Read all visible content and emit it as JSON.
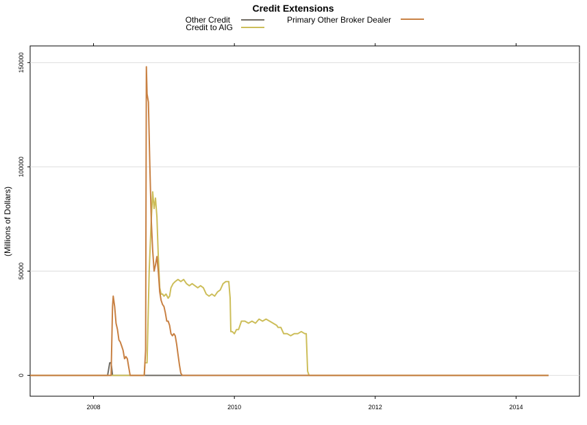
{
  "chart_data": {
    "type": "line",
    "title": "Credit Extensions",
    "ylabel": "(Millions of Dollars)",
    "xlabel": "",
    "xlim": [
      2007.1,
      2014.9
    ],
    "ylim": [
      -10000,
      158000
    ],
    "xticks": [
      2008,
      2010,
      2012,
      2014
    ],
    "yticks": [
      0,
      50000,
      100000,
      150000
    ],
    "grid": "horizontal",
    "legend_position": "top-center",
    "series": [
      {
        "name": "Other Credit",
        "color": "#6f6b63",
        "x": [
          2007.1,
          2008.2,
          2008.23,
          2008.25,
          2008.27,
          2014.46
        ],
        "y": [
          0,
          0,
          6000,
          6000,
          0,
          0
        ]
      },
      {
        "name": "Credit to AIG",
        "color": "#ccbd58",
        "x": [
          2007.1,
          2008.72,
          2008.73,
          2008.76,
          2008.79,
          2008.82,
          2008.84,
          2008.86,
          2008.88,
          2008.9,
          2008.92,
          2008.94,
          2008.96,
          2008.98,
          2009.0,
          2009.03,
          2009.06,
          2009.08,
          2009.1,
          2009.13,
          2009.16,
          2009.2,
          2009.24,
          2009.28,
          2009.32,
          2009.36,
          2009.4,
          2009.44,
          2009.48,
          2009.52,
          2009.56,
          2009.6,
          2009.64,
          2009.68,
          2009.72,
          2009.76,
          2009.8,
          2009.84,
          2009.88,
          2009.92,
          2009.94,
          2009.95,
          2009.97,
          2010.0,
          2010.03,
          2010.06,
          2010.1,
          2010.15,
          2010.2,
          2010.25,
          2010.3,
          2010.35,
          2010.4,
          2010.45,
          2010.5,
          2010.55,
          2010.6,
          2010.62,
          2010.66,
          2010.7,
          2010.75,
          2010.8,
          2010.85,
          2010.9,
          2010.95,
          2011.0,
          2011.02,
          2011.04,
          2011.06,
          2014.46
        ],
        "y": [
          0,
          0,
          6000,
          6000,
          50000,
          75000,
          88000,
          80000,
          85000,
          76000,
          57000,
          42000,
          39000,
          39000,
          38000,
          39000,
          37000,
          38000,
          42000,
          44000,
          45000,
          46000,
          45000,
          46000,
          44000,
          43000,
          44000,
          43000,
          42000,
          43000,
          42000,
          39000,
          38000,
          39000,
          38000,
          40000,
          41000,
          44000,
          45000,
          45000,
          37000,
          21000,
          21000,
          20000,
          22000,
          22000,
          26000,
          26000,
          25000,
          26000,
          25000,
          27000,
          26000,
          27000,
          26000,
          25000,
          24000,
          23000,
          23000,
          20000,
          20000,
          19000,
          20000,
          20000,
          21000,
          20000,
          20000,
          2000,
          0,
          0
        ]
      },
      {
        "name": "Primary Other Broker Dealer",
        "color": "#c88042",
        "x": [
          2007.1,
          2008.25,
          2008.27,
          2008.28,
          2008.3,
          2008.32,
          2008.34,
          2008.36,
          2008.38,
          2008.4,
          2008.42,
          2008.44,
          2008.46,
          2008.48,
          2008.5,
          2008.52,
          2008.54,
          2008.56,
          2008.72,
          2008.74,
          2008.75,
          2008.76,
          2008.78,
          2008.8,
          2008.82,
          2008.84,
          2008.86,
          2008.88,
          2008.9,
          2008.92,
          2008.94,
          2008.96,
          2008.98,
          2009.0,
          2009.02,
          2009.04,
          2009.06,
          2009.08,
          2009.1,
          2009.12,
          2009.14,
          2009.16,
          2009.18,
          2009.2,
          2009.22,
          2009.24,
          2009.26,
          2009.28,
          2009.3,
          2009.32,
          2009.34,
          2014.46
        ],
        "y": [
          0,
          0,
          33000,
          38000,
          33000,
          25000,
          22000,
          17000,
          16000,
          14000,
          12000,
          8000,
          9000,
          8000,
          4000,
          0,
          0,
          0,
          0,
          12000,
          148000,
          135000,
          131000,
          100000,
          74000,
          60000,
          50000,
          53000,
          57000,
          50000,
          40000,
          36000,
          34000,
          33000,
          30000,
          26000,
          26000,
          24000,
          20000,
          19000,
          20000,
          19000,
          15000,
          10000,
          5000,
          1000,
          0,
          0,
          0,
          0,
          0,
          0
        ]
      }
    ]
  }
}
